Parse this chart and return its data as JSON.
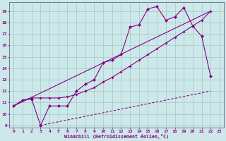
{
  "background_color": "#cce8e8",
  "grid_color": "#aacccc",
  "line_color": "#880088",
  "xlim": [
    -0.5,
    23.5
  ],
  "ylim": [
    8.8,
    19.8
  ],
  "xtick_labels": [
    "0",
    "1",
    "2",
    "3",
    "4",
    "5",
    "6",
    "7",
    "8",
    "9",
    "10",
    "11",
    "12",
    "13",
    "14",
    "15",
    "16",
    "17",
    "18",
    "19",
    "20",
    "21",
    "22",
    "23"
  ],
  "xtick_vals": [
    0,
    1,
    2,
    3,
    4,
    5,
    6,
    7,
    8,
    9,
    10,
    11,
    12,
    13,
    14,
    15,
    16,
    17,
    18,
    19,
    20,
    21,
    22,
    23
  ],
  "ytick_vals": [
    9,
    10,
    11,
    12,
    13,
    14,
    15,
    16,
    17,
    18,
    19
  ],
  "xlabel": "Windchill (Refroidissement éolien,°C)",
  "line1_x": [
    0,
    1,
    2,
    3,
    4,
    5,
    6,
    7,
    8,
    9,
    10,
    11,
    12,
    13,
    14,
    15,
    16,
    17,
    18,
    19,
    20,
    21,
    22
  ],
  "line1_y": [
    10.7,
    11.2,
    11.3,
    9.0,
    10.7,
    10.7,
    10.7,
    12.0,
    12.6,
    13.0,
    14.5,
    14.7,
    15.2,
    17.6,
    17.8,
    19.2,
    19.4,
    18.2,
    18.5,
    19.3,
    17.7,
    16.8,
    13.3
  ],
  "line2_x": [
    0,
    1,
    2,
    3,
    4,
    5,
    6,
    7,
    8,
    9,
    10,
    11,
    12,
    13,
    14,
    15,
    16,
    17,
    18,
    19,
    20,
    21,
    22
  ],
  "line2_y": [
    10.7,
    11.2,
    11.4,
    11.4,
    11.4,
    11.4,
    11.5,
    11.7,
    12.0,
    12.3,
    12.8,
    13.2,
    13.7,
    14.2,
    14.7,
    15.2,
    15.7,
    16.2,
    16.7,
    17.2,
    17.7,
    18.2,
    19.0
  ],
  "line3_x": [
    0,
    22
  ],
  "line3_y": [
    10.7,
    19.0
  ],
  "line4_x": [
    3,
    22
  ],
  "line4_y": [
    9.0,
    12.0
  ]
}
